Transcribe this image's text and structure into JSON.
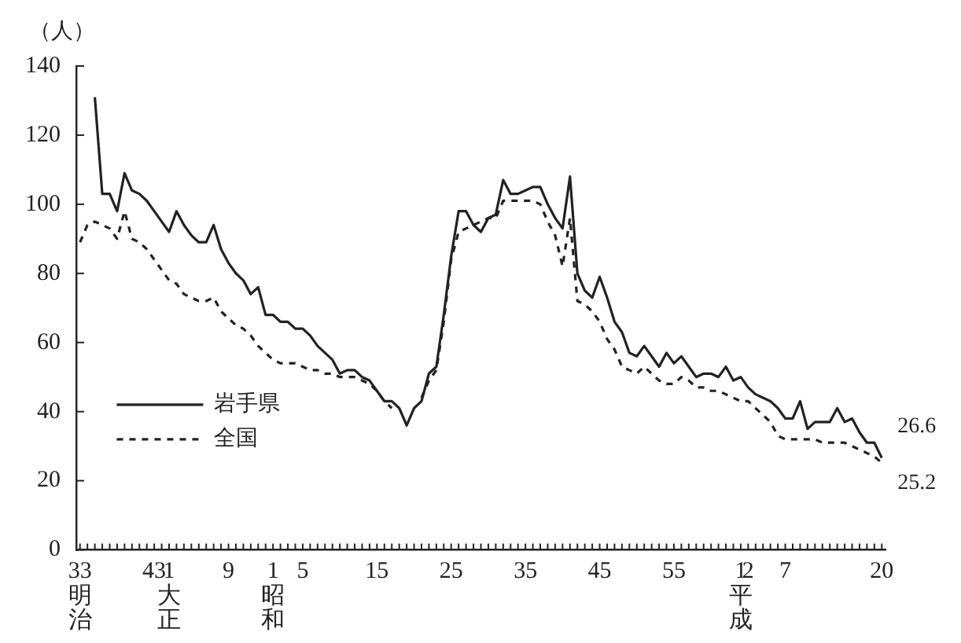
{
  "chart_data": {
    "type": "line",
    "ylabel": "（人）",
    "legend": "left",
    "categories": [
      "33明治",
      null,
      null,
      null,
      null,
      null,
      null,
      null,
      null,
      null,
      "43",
      null,
      "1大正",
      null,
      null,
      null,
      null,
      null,
      null,
      null,
      "9",
      null,
      null,
      null,
      null,
      null,
      "1昭和",
      null,
      null,
      null,
      "5",
      null,
      null,
      null,
      null,
      null,
      null,
      null,
      null,
      null,
      "15",
      null,
      null,
      null,
      null,
      null,
      null,
      null,
      null,
      null,
      "25",
      null,
      null,
      null,
      null,
      null,
      null,
      null,
      null,
      null,
      "35",
      null,
      null,
      null,
      null,
      null,
      null,
      null,
      null,
      null,
      "45",
      null,
      null,
      null,
      null,
      null,
      null,
      null,
      null,
      null,
      "55",
      null,
      null,
      null,
      null,
      null,
      null,
      null,
      null,
      "1平成",
      "2",
      null,
      null,
      null,
      null,
      "7",
      null,
      null,
      null,
      null,
      null,
      null,
      null,
      null,
      null,
      null,
      null,
      null,
      "20"
    ],
    "series": [
      {
        "name": "岩手県",
        "color": "#222222",
        "line_style": "solid",
        "values": [
          null,
          null,
          131,
          103,
          103,
          98,
          109,
          104,
          103,
          101,
          98,
          95,
          92,
          98,
          94,
          91,
          89,
          89,
          94,
          87,
          83,
          80,
          78,
          74,
          76,
          68,
          68,
          66,
          66,
          64,
          64,
          62,
          59,
          57,
          55,
          51,
          52,
          52,
          50,
          49,
          46,
          43,
          43,
          41,
          36,
          41,
          43,
          51,
          53,
          68,
          85,
          98,
          98,
          94,
          92,
          96,
          97,
          107,
          103,
          103,
          104,
          105,
          105,
          100,
          96,
          93,
          108,
          80,
          75,
          73,
          79,
          73,
          66,
          63,
          57,
          56,
          59,
          56,
          53,
          57,
          54,
          56,
          53,
          50,
          51,
          51,
          50,
          53,
          49,
          50,
          47,
          45,
          44,
          43,
          41,
          38,
          38,
          43,
          35,
          37,
          37,
          37,
          41,
          37,
          38,
          34,
          31,
          31,
          26.6
        ]
      },
      {
        "name": "全国",
        "color": "#222222",
        "line_style": "dashed",
        "values": [
          89,
          94,
          95,
          94,
          93,
          90,
          98,
          90,
          89,
          87,
          84,
          81,
          78,
          77,
          74,
          73,
          72,
          72,
          73,
          69,
          67,
          65,
          64,
          62,
          59,
          57,
          55,
          54,
          54,
          54,
          53,
          52,
          52,
          51,
          51,
          50,
          50,
          50,
          49,
          48,
          46,
          43,
          41,
          null,
          null,
          null,
          44,
          49,
          52,
          66,
          84,
          92,
          93,
          94,
          95,
          96,
          96,
          101,
          101,
          101,
          101,
          101,
          100,
          95,
          91,
          82,
          96,
          72,
          71,
          69,
          66,
          61,
          58,
          53,
          52,
          51,
          53,
          51,
          49,
          48,
          48,
          50,
          49,
          47,
          47,
          46,
          46,
          45,
          44,
          43,
          43,
          41,
          39,
          37,
          33,
          32,
          32,
          32,
          32,
          32,
          31,
          31,
          31,
          31,
          30,
          29,
          28,
          27,
          25.2
        ]
      }
    ],
    "ylim": [
      0,
      140
    ],
    "yticks": [
      0,
      20,
      40,
      60,
      80,
      100,
      120,
      140
    ],
    "annotations": [
      {
        "text": "26.6",
        "x": "20",
        "y": 26.6
      },
      {
        "text": "25.2",
        "x": "20",
        "y": 25.2
      }
    ]
  }
}
